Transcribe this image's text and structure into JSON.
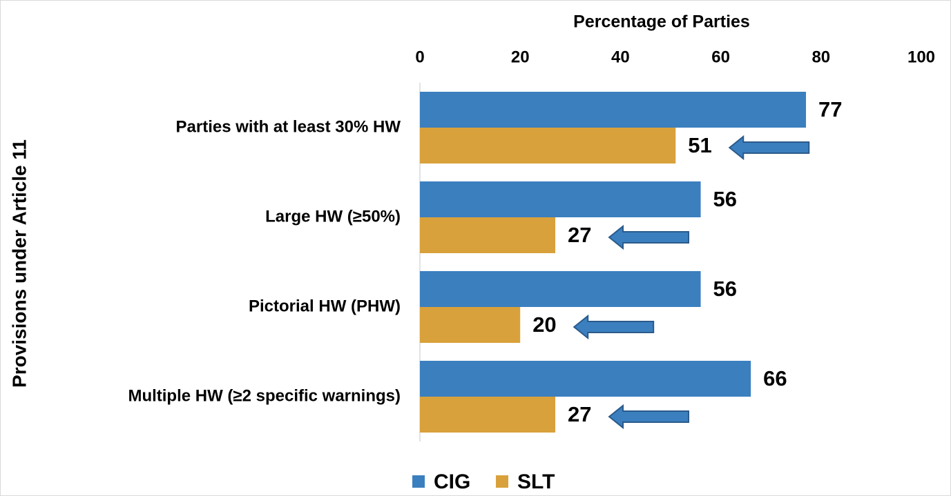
{
  "chart_data": {
    "type": "hbar",
    "xlabel": "Percentage of Parties",
    "ylabel": "Provisions under Article 11",
    "categories": [
      "Parties with at least 30% HW",
      "Large HW (≥50%)",
      "Pictorial HW (PHW)",
      "Multiple HW (≥2 specific warnings)"
    ],
    "series": [
      {
        "name": "CIG",
        "color": "#3b7fbf",
        "values": [
          77,
          56,
          56,
          66
        ]
      },
      {
        "name": "SLT",
        "color": "#d9a13b",
        "values": [
          51,
          27,
          20,
          27
        ]
      }
    ],
    "xlim": [
      0,
      100
    ],
    "xticks": [
      0,
      20,
      40,
      60,
      80,
      100
    ],
    "legend": "bottom"
  }
}
